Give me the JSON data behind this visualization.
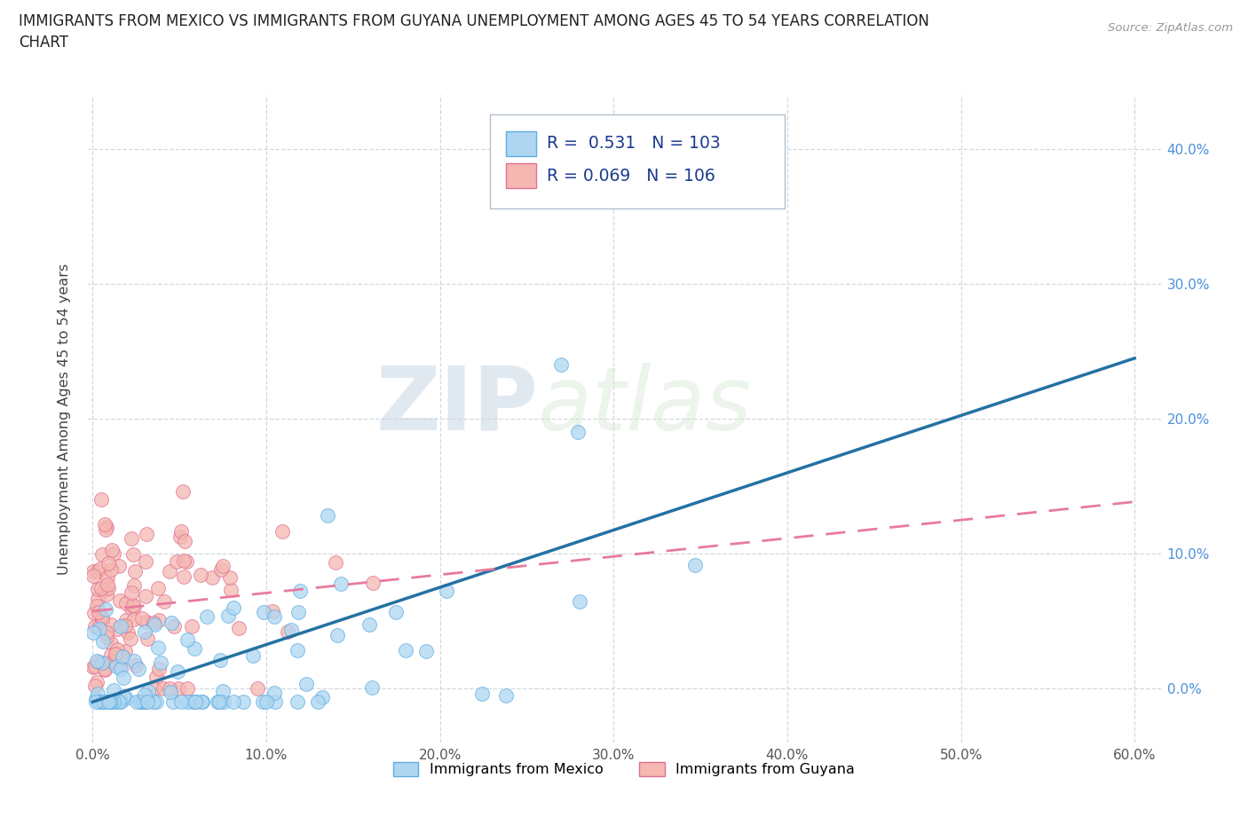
{
  "title_line1": "IMMIGRANTS FROM MEXICO VS IMMIGRANTS FROM GUYANA UNEMPLOYMENT AMONG AGES 45 TO 54 YEARS CORRELATION",
  "title_line2": "CHART",
  "source_text": "Source: ZipAtlas.com",
  "ylabel": "Unemployment Among Ages 45 to 54 years",
  "xlim": [
    -0.003,
    0.615
  ],
  "ylim": [
    -0.04,
    0.44
  ],
  "xticks": [
    0.0,
    0.1,
    0.2,
    0.3,
    0.4,
    0.5,
    0.6
  ],
  "yticks": [
    0.0,
    0.1,
    0.2,
    0.3,
    0.4
  ],
  "mexico_fill_color": "#aed6f1",
  "mexico_edge_color": "#5dade2",
  "guyana_fill_color": "#f5b7b1",
  "guyana_edge_color": "#e07090",
  "trend_mexico_color": "#2471a3",
  "trend_guyana_color": "#e87a9f",
  "R_mexico": 0.531,
  "N_mexico": 103,
  "R_guyana": 0.069,
  "N_guyana": 106,
  "legend_text_color": "#1a3a8f",
  "watermark_zip": "ZIP",
  "watermark_atlas": "atlas",
  "grid_color": "#d5d8dc",
  "background_color": "#ffffff",
  "tick_color_right": "#4a90d9",
  "tick_color_bottom": "#555555",
  "mexico_scatter_seed": 42,
  "guyana_scatter_seed": 99
}
